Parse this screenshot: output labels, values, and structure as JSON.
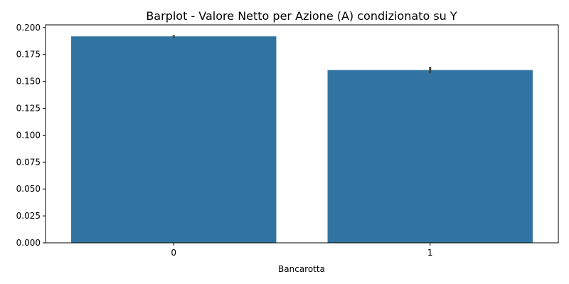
{
  "chart_data": {
    "type": "bar",
    "title": "Barplot - Valore Netto per Azione (A) condizionato su Y",
    "xlabel": "Bancarotta",
    "ylabel": "",
    "categories": [
      "0",
      "1"
    ],
    "values": [
      0.1918,
      0.1605
    ],
    "error_bars": [
      [
        0.1905,
        0.193
      ],
      [
        0.1575,
        0.1635
      ]
    ],
    "ylim": [
      0,
      0.2025
    ],
    "yticks": [
      0.0,
      0.025,
      0.05,
      0.075,
      0.1,
      0.125,
      0.15,
      0.175,
      0.2
    ],
    "ytick_labels": [
      "0.000",
      "0.025",
      "0.050",
      "0.075",
      "0.100",
      "0.125",
      "0.150",
      "0.175",
      "0.200"
    ],
    "grid": false,
    "bar_color": "#3274a1",
    "error_color": "#424242"
  }
}
